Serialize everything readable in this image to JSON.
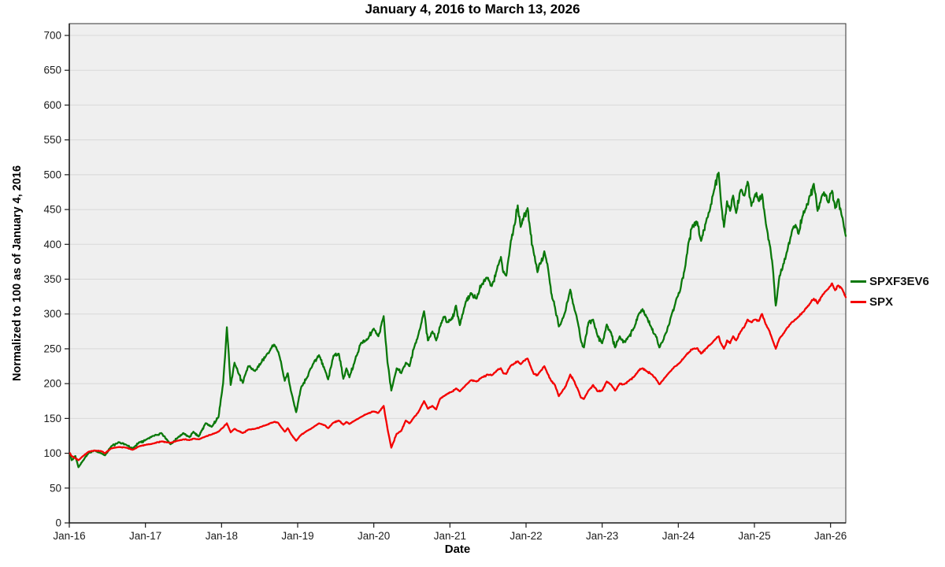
{
  "chart_data": {
    "type": "line",
    "title": "January 4, 2016 to March 13, 2026",
    "xlabel": "Date",
    "ylabel": "Normalized to 100 as of January 4, 2016",
    "xlim_years": [
      2016.0,
      2026.2
    ],
    "ylim": [
      0,
      700
    ],
    "y_tick_step": 50,
    "grid": "horizontal",
    "plot_background": "#efefef",
    "grid_color": "#d8d8d8",
    "axis_color": "#1a1a1a",
    "tick_label_color": "#1c1c1c",
    "legend_position": "right",
    "x_ticks": [
      {
        "label": "Jan-16",
        "t": 2016.0
      },
      {
        "label": "Jan-17",
        "t": 2017.0
      },
      {
        "label": "Jan-18",
        "t": 2018.0
      },
      {
        "label": "Jan-19",
        "t": 2019.0
      },
      {
        "label": "Jan-20",
        "t": 2020.0
      },
      {
        "label": "Jan-21",
        "t": 2021.0
      },
      {
        "label": "Jan-22",
        "t": 2022.0
      },
      {
        "label": "Jan-23",
        "t": 2023.0
      },
      {
        "label": "Jan-24",
        "t": 2024.0
      },
      {
        "label": "Jan-25",
        "t": 2025.0
      },
      {
        "label": "Jan-26",
        "t": 2026.0
      }
    ],
    "x": [
      2016.01,
      2016.03,
      2016.08,
      2016.12,
      2016.17,
      2016.25,
      2016.33,
      2016.42,
      2016.47,
      2016.55,
      2016.65,
      2016.75,
      2016.83,
      2016.92,
      2017.0,
      2017.1,
      2017.21,
      2017.33,
      2017.42,
      2017.5,
      2017.58,
      2017.63,
      2017.7,
      2017.79,
      2017.87,
      2017.96,
      2018.02,
      2018.07,
      2018.12,
      2018.17,
      2018.22,
      2018.28,
      2018.35,
      2018.44,
      2018.52,
      2018.6,
      2018.69,
      2018.74,
      2018.78,
      2018.83,
      2018.87,
      2018.91,
      2018.98,
      2019.05,
      2019.12,
      2019.2,
      2019.28,
      2019.36,
      2019.4,
      2019.47,
      2019.54,
      2019.6,
      2019.64,
      2019.68,
      2019.75,
      2019.83,
      2019.92,
      2020.0,
      2020.06,
      2020.13,
      2020.18,
      2020.23,
      2020.3,
      2020.36,
      2020.42,
      2020.47,
      2020.53,
      2020.58,
      2020.66,
      2020.71,
      2020.77,
      2020.82,
      2020.87,
      2020.92,
      2020.96,
      2021.02,
      2021.08,
      2021.13,
      2021.21,
      2021.28,
      2021.35,
      2021.42,
      2021.5,
      2021.55,
      2021.62,
      2021.67,
      2021.7,
      2021.74,
      2021.8,
      2021.85,
      2021.89,
      2021.93,
      2021.97,
      2022.02,
      2022.06,
      2022.1,
      2022.15,
      2022.19,
      2022.24,
      2022.28,
      2022.33,
      2022.38,
      2022.43,
      2022.47,
      2022.52,
      2022.58,
      2022.63,
      2022.68,
      2022.72,
      2022.76,
      2022.82,
      2022.88,
      2022.94,
      2023.0,
      2023.06,
      2023.12,
      2023.17,
      2023.23,
      2023.29,
      2023.35,
      2023.42,
      2023.48,
      2023.53,
      2023.58,
      2023.64,
      2023.7,
      2023.75,
      2023.8,
      2023.85,
      2023.9,
      2023.96,
      2024.02,
      2024.08,
      2024.14,
      2024.19,
      2024.25,
      2024.3,
      2024.36,
      2024.42,
      2024.47,
      2024.53,
      2024.56,
      2024.6,
      2024.64,
      2024.68,
      2024.72,
      2024.76,
      2024.82,
      2024.87,
      2024.91,
      2024.96,
      2025.01,
      2025.06,
      2025.1,
      2025.15,
      2025.2,
      2025.24,
      2025.28,
      2025.33,
      2025.38,
      2025.43,
      2025.49,
      2025.54,
      2025.58,
      2025.63,
      2025.68,
      2025.73,
      2025.78,
      2025.83,
      2025.88,
      2025.93,
      2025.97,
      2026.02,
      2026.06,
      2026.1,
      2026.15,
      2026.2
    ],
    "series": [
      {
        "name": "SPXF3EV6",
        "color": "#0a780a",
        "values": [
          100,
          90,
          96,
          80,
          88,
          100,
          104,
          100,
          97,
          110,
          116,
          112,
          107,
          116,
          119,
          125,
          129,
          113,
          122,
          129,
          123,
          131,
          124,
          143,
          138,
          152,
          200,
          281,
          198,
          230,
          215,
          201,
          225,
          218,
          230,
          243,
          256,
          246,
          232,
          204,
          215,
          190,
          159,
          196,
          208,
          228,
          241,
          219,
          206,
          240,
          243,
          207,
          222,
          209,
          232,
          258,
          264,
          279,
          268,
          297,
          230,
          190,
          222,
          215,
          230,
          225,
          252,
          268,
          304,
          262,
          275,
          262,
          282,
          296,
          288,
          292,
          312,
          284,
          318,
          330,
          322,
          343,
          352,
          340,
          365,
          382,
          360,
          355,
          405,
          428,
          456,
          425,
          440,
          452,
          415,
          388,
          360,
          372,
          390,
          372,
          330,
          310,
          282,
          290,
          305,
          335,
          310,
          288,
          262,
          252,
          288,
          292,
          268,
          258,
          285,
          272,
          252,
          268,
          260,
          268,
          280,
          300,
          307,
          296,
          282,
          270,
          252,
          262,
          275,
          295,
          315,
          332,
          362,
          405,
          428,
          432,
          405,
          430,
          452,
          478,
          503,
          462,
          425,
          462,
          448,
          470,
          445,
          478,
          470,
          490,
          455,
          472,
          462,
          472,
          430,
          400,
          368,
          312,
          355,
          372,
          390,
          418,
          428,
          415,
          440,
          452,
          470,
          487,
          448,
          468,
          472,
          460,
          477,
          452,
          465,
          440,
          412
        ]
      },
      {
        "name": "SPX",
        "color": "#f40000",
        "values": [
          100,
          96,
          93,
          90,
          95,
          102,
          104,
          103,
          100,
          107,
          109,
          108,
          105,
          110,
          112,
          114,
          117,
          115,
          118,
          120,
          119,
          121,
          120,
          124,
          127,
          131,
          137,
          143,
          130,
          135,
          132,
          129,
          134,
          135,
          138,
          141,
          145,
          144,
          138,
          131,
          136,
          128,
          118,
          127,
          132,
          137,
          143,
          140,
          136,
          144,
          147,
          141,
          145,
          142,
          147,
          152,
          157,
          160,
          158,
          168,
          135,
          108,
          128,
          132,
          147,
          143,
          152,
          158,
          175,
          164,
          168,
          163,
          178,
          182,
          185,
          188,
          193,
          189,
          198,
          205,
          203,
          209,
          213,
          212,
          219,
          222,
          215,
          214,
          226,
          229,
          232,
          228,
          233,
          236,
          225,
          214,
          212,
          218,
          225,
          215,
          204,
          198,
          182,
          188,
          196,
          213,
          204,
          192,
          180,
          178,
          190,
          198,
          189,
          190,
          203,
          198,
          190,
          200,
          199,
          204,
          210,
          219,
          222,
          218,
          214,
          208,
          199,
          205,
          212,
          218,
          225,
          230,
          238,
          245,
          250,
          251,
          243,
          250,
          256,
          262,
          268,
          258,
          250,
          262,
          258,
          268,
          262,
          275,
          282,
          292,
          288,
          292,
          290,
          300,
          285,
          275,
          262,
          250,
          265,
          272,
          280,
          288,
          292,
          296,
          302,
          308,
          315,
          322,
          315,
          325,
          332,
          336,
          344,
          334,
          341,
          336,
          324
        ]
      }
    ]
  }
}
